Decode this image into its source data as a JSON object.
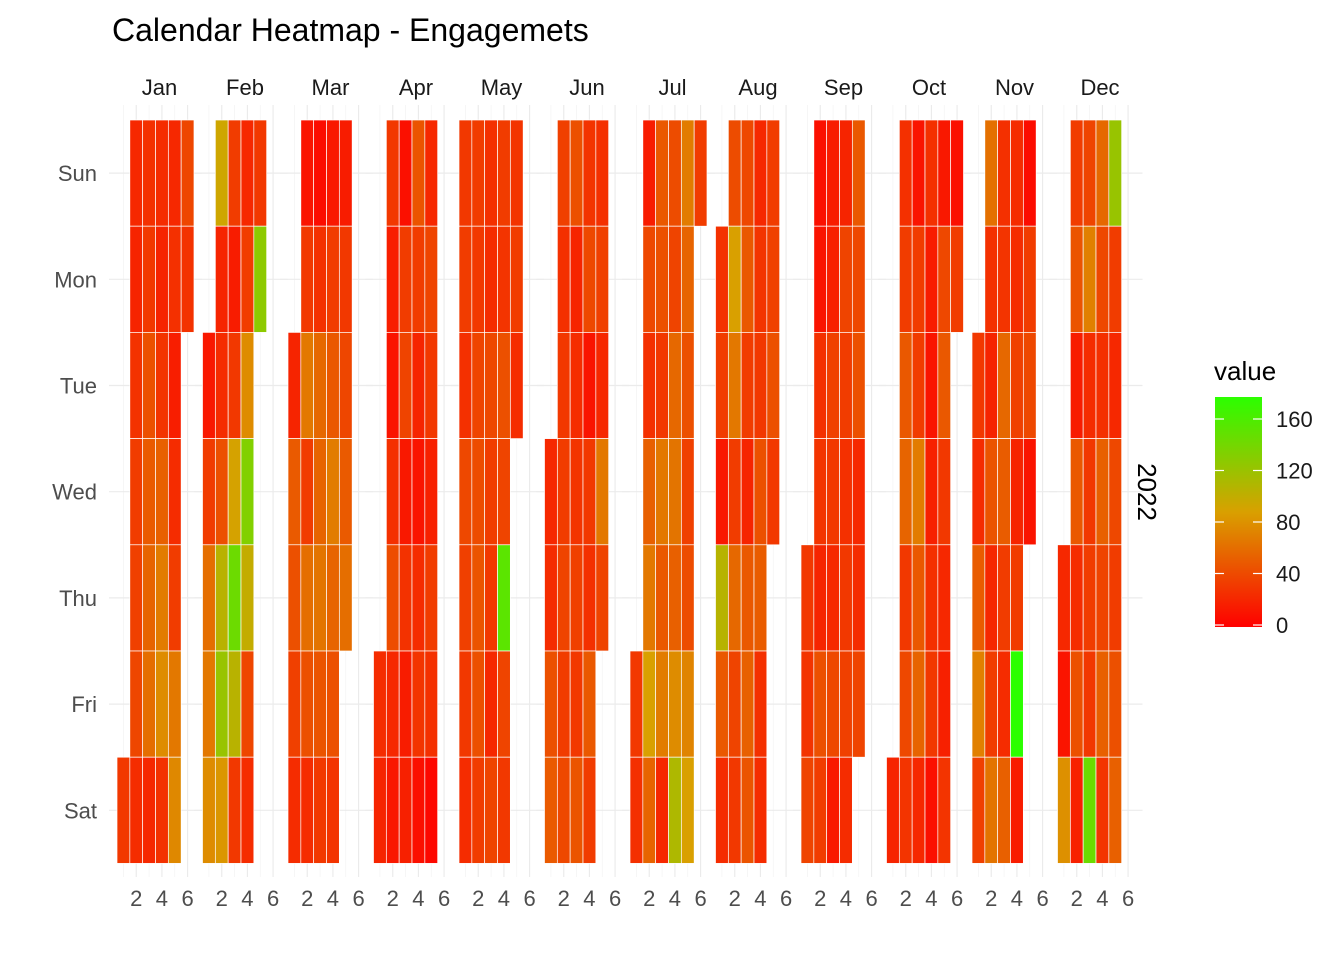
{
  "chart_data": {
    "type": "heatmap",
    "title": "Calendar Heatmap - Engagemets",
    "facet_row_label": "2022",
    "months": [
      "Jan",
      "Feb",
      "Mar",
      "Apr",
      "May",
      "Jun",
      "Jul",
      "Aug",
      "Sep",
      "Oct",
      "Nov",
      "Dec"
    ],
    "weekdays": [
      "Sun",
      "Mon",
      "Tue",
      "Wed",
      "Thu",
      "Fri",
      "Sat"
    ],
    "x_ticks": [
      2,
      4,
      6
    ],
    "x_range": [
      0.5,
      6.5
    ],
    "weeks_by_month": [
      {
        "month": "Jan",
        "first_week": 1,
        "num_weeks": 5,
        "start_dow": 6,
        "num_days": 31
      },
      {
        "month": "Feb",
        "first_week": 1,
        "num_weeks": 5,
        "start_dow": 2,
        "num_days": 28
      },
      {
        "month": "Mar",
        "first_week": 1,
        "num_weeks": 5,
        "start_dow": 2,
        "num_days": 31
      },
      {
        "month": "Apr",
        "first_week": 1,
        "num_weeks": 5,
        "start_dow": 5,
        "num_days": 30
      },
      {
        "month": "May",
        "first_week": 1,
        "num_weeks": 5,
        "start_dow": 0,
        "num_days": 31
      },
      {
        "month": "Jun",
        "first_week": 1,
        "num_weeks": 5,
        "start_dow": 3,
        "num_days": 30
      },
      {
        "month": "Jul",
        "first_week": 1,
        "num_weeks": 6,
        "start_dow": 5,
        "num_days": 31
      },
      {
        "month": "Aug",
        "first_week": 1,
        "num_weeks": 6,
        "start_dow": 1,
        "num_days": 31
      },
      {
        "month": "Sep",
        "first_week": 1,
        "num_weeks": 5,
        "start_dow": 4,
        "num_days": 30
      },
      {
        "month": "Oct",
        "first_week": 1,
        "num_weeks": 6,
        "start_dow": 6,
        "num_days": 31
      },
      {
        "month": "Nov",
        "first_week": 1,
        "num_weeks": 5,
        "start_dow": 2,
        "num_days": 30
      },
      {
        "month": "Dec",
        "first_week": 1,
        "num_weeks": 5,
        "start_dow": 4,
        "num_days": 31
      }
    ],
    "values": {
      "Jan": [
        28,
        20,
        18,
        25,
        30,
        32,
        35,
        22,
        24,
        28,
        40,
        45,
        50,
        55,
        20,
        22,
        18,
        26,
        48,
        62,
        70,
        25,
        20,
        24,
        15,
        22,
        30,
        60,
        68,
        35,
        25
      ],
      "Feb": [
        12,
        30,
        55,
        60,
        70,
        85,
        18,
        22,
        40,
        95,
        110,
        75,
        30,
        14,
        28,
        82,
        130,
        95,
        28,
        20,
        30,
        70,
        120,
        90,
        35,
        22,
        28,
        115
      ],
      "Mar": [
        18,
        45,
        40,
        32,
        22,
        10,
        28,
        60,
        30,
        55,
        40,
        22,
        6,
        24,
        52,
        50,
        58,
        42,
        28,
        12,
        30,
        44,
        62,
        50,
        40,
        26,
        14,
        28,
        35,
        45,
        55
      ],
      "Apr": [
        22,
        18,
        28,
        15,
        10,
        24,
        38,
        20,
        12,
        8,
        30,
        34,
        12,
        25,
        14,
        16,
        42,
        30,
        18,
        10,
        22,
        26,
        8,
        20,
        34,
        28,
        16,
        30,
        24,
        4
      ],
      "May": [
        28,
        30,
        24,
        36,
        32,
        28,
        22,
        30,
        28,
        34,
        38,
        42,
        40,
        30,
        24,
        22,
        36,
        30,
        28,
        20,
        34,
        30,
        26,
        40,
        34,
        138,
        34,
        28,
        26,
        30,
        22
      ],
      "Jun": [
        20,
        22,
        40,
        45,
        32,
        24,
        28,
        30,
        34,
        30,
        36,
        40,
        18,
        22,
        26,
        32,
        28,
        42,
        26,
        36,
        10,
        28,
        24,
        44,
        30,
        24,
        32,
        20,
        60,
        34
      ],
      "Jul": [
        28,
        24,
        14,
        36,
        24,
        48,
        60,
        80,
        50,
        44,
        40,
        28,
        60,
        44,
        62,
        20,
        38,
        34,
        52,
        58,
        48,
        70,
        100,
        62,
        50,
        40,
        32,
        38,
        66,
        80,
        30
      ],
      "Aug": [
        24,
        30,
        12,
        96,
        44,
        22,
        38,
        80,
        60,
        30,
        52,
        34,
        28,
        36,
        44,
        30,
        18,
        44,
        48,
        42,
        20,
        26,
        28,
        40,
        46,
        24,
        22,
        30,
        32,
        40,
        28
      ],
      "Sep": [
        28,
        26,
        34,
        8,
        10,
        24,
        26,
        18,
        40,
        30,
        14,
        16,
        32,
        28,
        20,
        36,
        12,
        18,
        34,
        30,
        24,
        28,
        32,
        22,
        44,
        36,
        40,
        20,
        22,
        34
      ],
      "Oct": [
        18,
        24,
        30,
        44,
        50,
        28,
        36,
        26,
        10,
        30,
        30,
        62,
        44,
        50,
        20,
        24,
        14,
        10,
        16,
        24,
        28,
        8,
        12,
        36,
        44,
        28,
        20,
        16,
        26,
        8,
        30
      ],
      "Nov": [
        28,
        22,
        46,
        64,
        32,
        56,
        24,
        18,
        42,
        20,
        30,
        58,
        24,
        26,
        52,
        46,
        30,
        22,
        48,
        22,
        22,
        32,
        18,
        30,
        160,
        14,
        6,
        30,
        36,
        10
      ],
      "Dec": [
        20,
        10,
        72,
        30,
        42,
        14,
        44,
        22,
        40,
        16,
        34,
        64,
        22,
        28,
        30,
        28,
        130,
        52,
        36,
        24,
        48,
        34,
        48,
        26,
        110,
        30,
        20,
        36,
        30,
        40,
        48
      ]
    },
    "legend": {
      "title": "value",
      "ticks": [
        0,
        40,
        80,
        120,
        160
      ],
      "range": [
        0,
        160
      ],
      "low_color": "#ff0000",
      "mid_color": "#d9a000",
      "high_color": "#2bff00"
    },
    "grid": true
  }
}
